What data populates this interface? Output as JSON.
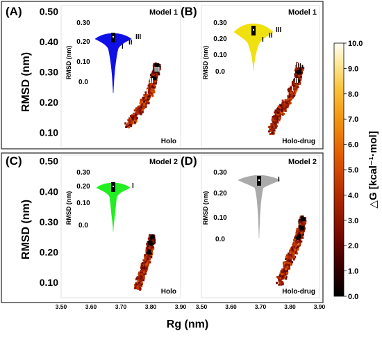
{
  "chart_data": {
    "type": "heatmap",
    "shared": {
      "xlabel": "Rg (nm)",
      "ylabel": "RMSD (nm)",
      "xticks": [
        "3.50",
        "3.60",
        "3.70",
        "3.80",
        "3.90"
      ],
      "yticks": [
        "0.50",
        "0.40",
        "0.30",
        "0.20",
        "0.10"
      ],
      "xlim": [
        3.5,
        3.9
      ],
      "ylim": [
        0.05,
        0.52
      ],
      "colorbar": {
        "title": "△G [kcal⁻¹·mol]",
        "min": 0.0,
        "max": 10.0,
        "ticks": [
          "10.0",
          "9.0",
          "8.0",
          "7.0",
          "6.0",
          "5.0",
          "4.0",
          "3.0",
          "2.0",
          "1.0",
          "0.0"
        ]
      },
      "inset_ylabel": "RMSD (nm)"
    },
    "panels": [
      {
        "id": "(A)",
        "model": "Model 1",
        "condition": "Holo",
        "violin_color": "#1010e6",
        "inset_yticks": [
          "0.30",
          "0.20",
          "0.10",
          "0.0"
        ],
        "minima_labels": [
          "III",
          "II",
          "I"
        ],
        "path": [
          [
            3.725,
            0.125
          ],
          [
            3.745,
            0.15
          ],
          [
            3.765,
            0.175
          ],
          [
            3.78,
            0.2
          ],
          [
            3.795,
            0.225
          ],
          [
            3.805,
            0.255
          ],
          [
            3.81,
            0.28
          ],
          [
            3.82,
            0.305
          ],
          [
            3.82,
            0.32
          ]
        ]
      },
      {
        "id": "(B)",
        "model": "Model 1",
        "condition": "Holo-drug",
        "violin_color": "#f0e010",
        "inset_yticks": [
          "0.30",
          "0.20",
          "0.10",
          "0.0"
        ],
        "minima_labels": [
          "III",
          "II",
          "I"
        ],
        "path": [
          [
            3.735,
            0.1
          ],
          [
            3.75,
            0.14
          ],
          [
            3.77,
            0.175
          ],
          [
            3.79,
            0.2
          ],
          [
            3.81,
            0.24
          ],
          [
            3.825,
            0.27
          ],
          [
            3.83,
            0.3
          ],
          [
            3.835,
            0.32
          ]
        ]
      },
      {
        "id": "(C)",
        "model": "Model 2",
        "condition": "Holo",
        "violin_color": "#22ee22",
        "inset_yticks": [
          "0.30",
          "0.20",
          "0.10",
          "0.0"
        ],
        "minima_labels": [
          "I"
        ],
        "path": [
          [
            3.755,
            0.08
          ],
          [
            3.765,
            0.11
          ],
          [
            3.775,
            0.14
          ],
          [
            3.785,
            0.17
          ],
          [
            3.795,
            0.2
          ],
          [
            3.8,
            0.23
          ],
          [
            3.805,
            0.25
          ]
        ]
      },
      {
        "id": "(D)",
        "model": "Model 2",
        "condition": "Holo-drug",
        "violin_color": "#aaaaaa",
        "inset_yticks": [
          "0.30",
          "0.20",
          "0.10",
          "0.0"
        ],
        "minima_labels": [
          "I"
        ],
        "path": [
          [
            3.765,
            0.1
          ],
          [
            3.78,
            0.13
          ],
          [
            3.79,
            0.16
          ],
          [
            3.805,
            0.19
          ],
          [
            3.82,
            0.22
          ],
          [
            3.83,
            0.25
          ],
          [
            3.84,
            0.28
          ],
          [
            3.845,
            0.31
          ]
        ]
      }
    ]
  }
}
